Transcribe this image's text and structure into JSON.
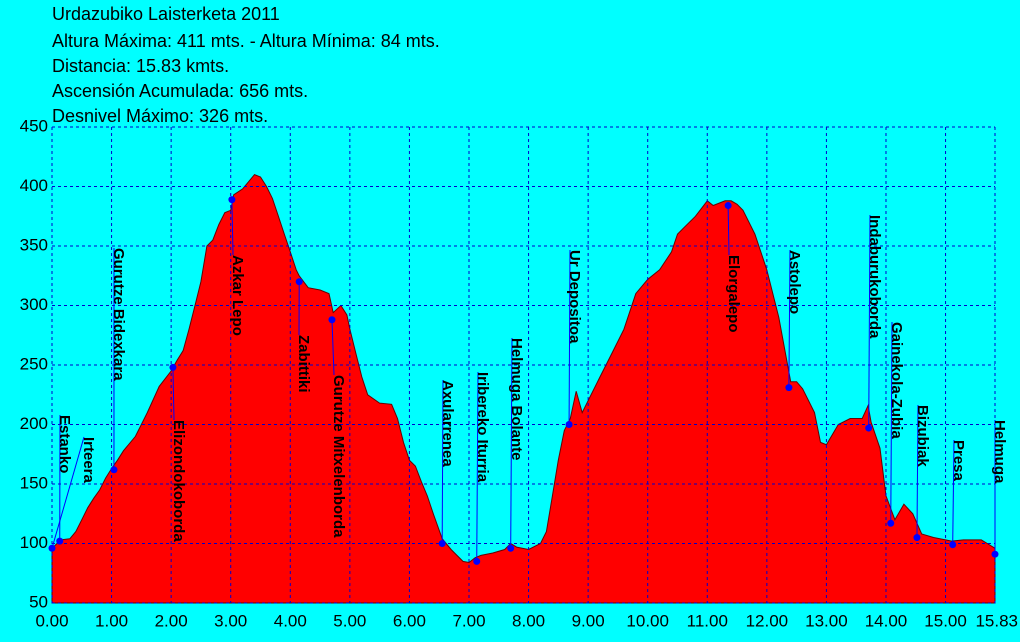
{
  "chart_data": {
    "type": "area",
    "title": "Urdazubiko Laisterketa 2011",
    "stats": [
      "Altura Máxima: 411 mts. - Altura Mínima: 84 mts.",
      "Distancia: 15.83 kmts.",
      "Ascensión Acumulada: 656 mts.",
      "Desnivel Máximo: 326 mts."
    ],
    "color": "#ff0000",
    "grid": true,
    "grid_color": "#0000cc",
    "waypoint_color": "#0000ff",
    "x": [
      0.0,
      0.15,
      0.3,
      0.4,
      0.5,
      0.6,
      0.7,
      0.8,
      0.9,
      1.0,
      1.1,
      1.2,
      1.4,
      1.6,
      1.8,
      2.0,
      2.1,
      2.2,
      2.3,
      2.4,
      2.5,
      2.6,
      2.7,
      2.8,
      2.9,
      3.0,
      3.05,
      3.2,
      3.4,
      3.5,
      3.6,
      3.7,
      3.8,
      3.9,
      4.0,
      4.1,
      4.15,
      4.3,
      4.5,
      4.65,
      4.72,
      4.85,
      4.95,
      5.0,
      5.1,
      5.2,
      5.3,
      5.5,
      5.7,
      5.8,
      5.9,
      6.0,
      6.1,
      6.2,
      6.3,
      6.4,
      6.55,
      6.7,
      6.9,
      7.0,
      7.1,
      7.2,
      7.4,
      7.6,
      7.7,
      7.8,
      8.0,
      8.2,
      8.3,
      8.4,
      8.5,
      8.6,
      8.7,
      8.8,
      8.9,
      9.0,
      9.2,
      9.4,
      9.6,
      9.8,
      10.0,
      10.2,
      10.4,
      10.5,
      10.6,
      10.8,
      11.0,
      11.1,
      11.3,
      11.4,
      11.5,
      11.6,
      11.8,
      12.0,
      12.2,
      12.4,
      12.5,
      12.6,
      12.8,
      12.9,
      13.0,
      13.2,
      13.4,
      13.6,
      13.7,
      13.75,
      13.9,
      14.0,
      14.15,
      14.3,
      14.45,
      14.6,
      14.8,
      15.0,
      15.1,
      15.3,
      15.6,
      15.7,
      15.83
    ],
    "values": [
      96,
      103,
      104,
      110,
      120,
      130,
      138,
      145,
      155,
      163,
      170,
      178,
      190,
      210,
      232,
      245,
      254,
      262,
      280,
      300,
      320,
      350,
      355,
      368,
      378,
      380,
      393,
      398,
      410,
      408,
      400,
      390,
      375,
      360,
      345,
      330,
      325,
      315,
      313,
      310,
      294,
      300,
      292,
      280,
      260,
      240,
      225,
      218,
      217,
      205,
      185,
      170,
      165,
      152,
      140,
      125,
      104,
      95,
      85,
      84,
      88,
      90,
      92,
      95,
      100,
      97,
      95,
      100,
      110,
      140,
      170,
      195,
      205,
      228,
      210,
      220,
      240,
      260,
      280,
      310,
      322,
      330,
      345,
      360,
      365,
      375,
      388,
      384,
      388,
      388,
      385,
      380,
      360,
      330,
      290,
      236,
      236,
      230,
      210,
      185,
      183,
      200,
      205,
      205,
      216,
      202,
      180,
      140,
      120,
      133,
      125,
      108,
      105,
      103,
      102,
      103,
      103,
      100,
      96
    ],
    "waypoints": [
      {
        "name": "Estanko",
        "x": 0.13,
        "value": 102
      },
      {
        "name": "Irteera",
        "x": 0.0,
        "value": 96
      },
      {
        "name": "Gurutze Bidexkara",
        "x": 1.04,
        "value": 162
      },
      {
        "name": "Elizondokoborda",
        "x": 2.03,
        "value": 248
      },
      {
        "name": "Azkar Lepo",
        "x": 3.02,
        "value": 389
      },
      {
        "name": "Zabittiki",
        "x": 4.15,
        "value": 320
      },
      {
        "name": "Gurutze Mitxelenborda",
        "x": 4.7,
        "value": 288
      },
      {
        "name": "Axularrenea",
        "x": 6.55,
        "value": 100
      },
      {
        "name": "Iribereko Iturria",
        "x": 7.13,
        "value": 85
      },
      {
        "name": "Helmuga Bolante",
        "x": 7.7,
        "value": 96
      },
      {
        "name": "Ur Depositoa",
        "x": 8.68,
        "value": 200
      },
      {
        "name": "Elorgalepo",
        "x": 11.35,
        "value": 384
      },
      {
        "name": "Astolepo",
        "x": 12.37,
        "value": 231
      },
      {
        "name": "Indaburukoborda",
        "x": 13.71,
        "value": 197
      },
      {
        "name": "Gainekola-Zubia",
        "x": 14.08,
        "value": 117
      },
      {
        "name": "Bizubiak",
        "x": 14.52,
        "value": 105
      },
      {
        "name": "Presa",
        "x": 15.12,
        "value": 99
      },
      {
        "name": "Helmuga",
        "x": 15.83,
        "value": 91
      }
    ],
    "xlim": [
      0,
      15.83
    ],
    "ylim": [
      50,
      450
    ],
    "xticks": [
      {
        "value": 0,
        "label": "0.00"
      },
      {
        "value": 1,
        "label": "1.00"
      },
      {
        "value": 2,
        "label": "2.00"
      },
      {
        "value": 3,
        "label": "3.00"
      },
      {
        "value": 4,
        "label": "4.00"
      },
      {
        "value": 5,
        "label": "5.00"
      },
      {
        "value": 6,
        "label": "6.00"
      },
      {
        "value": 7,
        "label": "7.00"
      },
      {
        "value": 8,
        "label": "8.00"
      },
      {
        "value": 9,
        "label": "9.00"
      },
      {
        "value": 10,
        "label": "10.00"
      },
      {
        "value": 11,
        "label": "11.00"
      },
      {
        "value": 12,
        "label": "12.00"
      },
      {
        "value": 13,
        "label": "13.00"
      },
      {
        "value": 14,
        "label": "14.00"
      },
      {
        "value": 15,
        "label": "15.00"
      },
      {
        "value": 15.83,
        "label": "15.83"
      }
    ],
    "yticks": [
      50,
      100,
      150,
      200,
      250,
      300,
      350,
      400,
      450
    ]
  }
}
